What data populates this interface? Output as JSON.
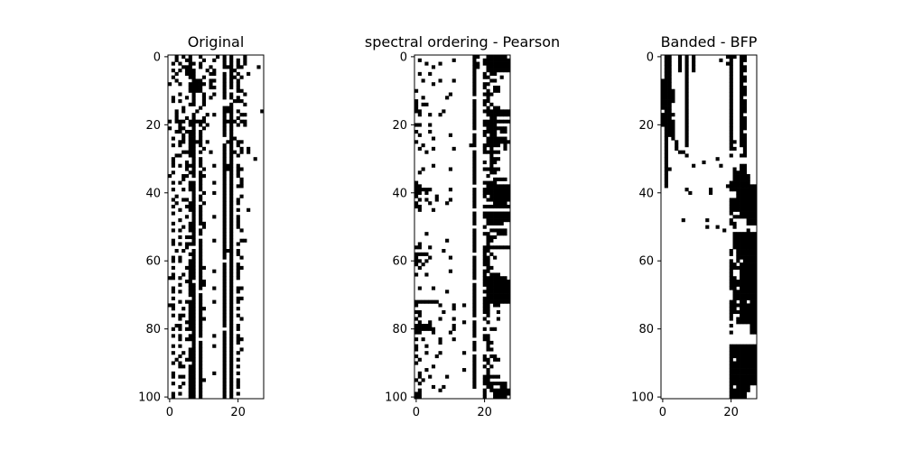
{
  "chart_data": [
    {
      "type": "heatmap",
      "title": "Original",
      "n_rows": 101,
      "n_cols": 28,
      "xticks": [
        0,
        20
      ],
      "yticks": [
        0,
        20,
        40,
        60,
        80,
        100
      ],
      "colormap": {
        "0": "#ffffff",
        "1": "#000000"
      },
      "matrix": [
        "0010101001000010101000100000",
        "0010011000100100101010100000",
        "0101001101000000101010100000",
        "0000111001001000111011000010",
        "0101011100010100001100000000",
        "0010011100001100101010010000",
        "0100001100100000101101000000",
        "0010000111001100101010000000",
        "1001001111101000101010000000",
        "0000001111001100101010000000",
        "0000001111000000100011000000",
        "0001000100100100101000100000",
        "0100010100101000101010000000",
        "0101000100100000000111000000",
        "0000001100100000001000100000",
        "0000100001000000111000000000",
        "0010100010000000111010000001",
        "0010000100010100101001100000",
        "0010010100100000101010000000",
        "1011101111100000111101100000",
        "0001001101010000101010100000",
        "1001100100100000101000000000",
        "0011011101000000101000000000",
        "0000101101000000101000000000",
        "0100101101000000001100000000",
        "0001101111010000011011000000",
        "0101001101000000101010000000",
        "0000001100100000101001010000",
        "0000111101001000101101010000",
        "0011001100000000101010000000",
        "0100000101000000101000000100",
        "0100010101000000101000000000",
        "0101011101000100111010000000",
        "0000010100100000111011000000",
        "0100001101000000101010000000",
        "1000110101100000101010000000",
        "0000100001000000101001000000",
        "0101001101000100101001000000",
        "0000001101000000101011000000",
        "0100101101000000101000000000",
        "0000000100100100101000000000",
        "0010000101000000101001000000",
        "0100110101000000101010000000",
        "0010001100100000101010000000",
        "0100011101000000101000000000",
        "0001001101000000101010010000",
        "0100000101000000101000000000",
        "0000010101000100101010000000",
        "0001000101000000101010000000",
        "0100001101100000101010000000",
        "0000101100100000101010000000",
        "0101001101000000101001000000",
        "0000000101000000101000000000",
        "0001011100000000101000000000",
        "0100000101000100101001100000",
        "0101011101000000101010000000",
        "0000010001000000101000000000",
        "0010100101000000111010000000",
        "0000001101000000101010000000",
        "0101000101000000101001000000",
        "0101001101000000001000000000",
        "0000001101000000101010000000",
        "0100011101100000101011000000",
        "0000001101000100101010000000",
        "0100101101000000101010000000",
        "1101001101000000101010000000",
        "0000011001100000101000000000",
        "0001001101100000101000000000",
        "0100001101000100101011000000",
        "0101001100000000101010000000",
        "0000001101000000101000000000",
        "0100000101000000101011000000",
        "0001011101000100101010000000",
        "1100001101000000101000000000",
        "0100101101100000101010000000",
        "0000001101000000101000000000",
        "0101101101000000101010000000",
        "0001001101100000101001000000",
        "0000011101000000101000000000",
        "0011001101000000101010000000",
        "0101011101000000001010000000",
        "0000000101000000101000000000",
        "0101001101000100101010000000",
        "0001011100000000101011000000",
        "0000000101000000101010000000",
        "0101000101000100101000000000",
        "0000001101000000101001000000",
        "0100101101000000101010000000",
        "0001001101000000101000000000",
        "0010011101000000101010000000",
        "0101000101000000101000000000",
        "0001101101000000101010000000",
        "0000001101000000101000000000",
        "0100001101000100101010000000",
        "0101101101000000101000000000",
        "0000001101100000101010000000",
        "0100101101000000101010000000",
        "0001001101000000101010000000",
        "0000001101000000101000000000",
        "0101001101000000101010000000",
        "0100001101000000101000000000"
      ]
    },
    {
      "type": "heatmap",
      "title": "spectral ordering - Pearson",
      "n_rows": 101,
      "n_cols": 28,
      "xticks": [
        0,
        20
      ],
      "yticks": [
        0,
        20,
        40,
        60,
        80,
        100
      ],
      "colormap": {
        "0": "#ffffff",
        "1": "#000000"
      },
      "matrix": [
        "0000000000000000011001111110",
        "0100000000010000010011111111",
        "0001000100000000011011111111",
        "0000010000000000011001111111",
        "0000000000000000010001111111",
        "0100100000000000010010110000",
        "0000000000000000010011000100",
        "0010000100010000010000110000",
        "0000010000000000010011000000",
        "0000000000000000010010011000",
        "1000000000000000010001011000",
        "0000000000100000010011100000",
        "0010000001000000000001000000",
        "1000000000000000010011000000",
        "1011000000000000010010100000",
        "1000000000000000010001011000",
        "1100000010000000010011111111",
        "0100100100000000010001111111",
        "0000000000000000010000110000",
        "0000000000000000010011111111",
        "1100100000000000010011110000",
        "0000000000000000010001111110",
        "1000100000000000000011110110",
        "0100000000100000010010110000",
        "0000010000000000010001111110",
        "1000000000000000010001111111",
        "0010000000000000110011111010",
        "0100010000010000000010100010",
        "0001000000000000010011111000",
        "0000000000000000010000100000",
        "0000000000000000010000111000",
        "0000000000000000010010110000",
        "0000010000000000010000100000",
        "0010000000100000010011111000",
        "0100000000000000010000110000",
        "0000000000000000010001000000",
        "0000000000000000010000011110",
        "1000000000000000010011110000",
        "1100000000000000000001111111",
        "1111100000100000010011111111",
        "1101000000000000010011111111",
        "1000001000000000010010111111",
        "0101001000100000010001111111",
        "1000100001000000010000011110",
        "1100000000000000010011111111",
        "0100010000000000000000000000",
        "0000000000000000010011111111",
        "0000000000000000010011111111",
        "0000000000000000010001111111",
        "0000000000000000010001111100",
        "0000000000000000000010000000",
        "0000000000000000010000111110",
        "0001000000000000010011001110",
        "0000000000000000010001110000",
        "0000000001000000010001100000",
        "0100000000000000010001000000",
        "1100100000000000010011111111",
        "0000000010000000010011000000",
        "1111000000000000000010100000",
        "1000100000100000010011010000",
        "1101000000000000010011000000",
        "1010000000000000010011000000",
        "0100000000000000010001100000",
        "0000000000100000010011000000",
        "1001000000000000010010111000",
        "0000000000000000010011111110",
        "0000000000000000000011111111",
        "0000000000000000010011111111",
        "0100010000000000010001111111",
        "0000000001000000010011111111",
        "0000000000000000010001111111",
        "0000000000000000010011111111",
        "1111111000000000010011111111",
        "1000000100010010010011011000",
        "0000000000010000010011000000",
        "1100000010000000010011001000",
        "0100000000000000010001000000",
        "1000000100010000000010001000",
        "0100100000000010010001000000",
        "1111100000010000010000000000",
        "1111110000010000010010110000",
        "1100010000100000010000000000",
        "0000000000000000010011000000",
        "1010000100010000000011000000",
        "0000000100000000010001100000",
        "1001000000000000010001000000",
        "1000000000000000010001100000",
        "0001000100000010000000000000",
        "1000001000000000010010110000",
        "0100000000000000010011011000",
        "1000000000000000010001000000",
        "0000010000000000010010100000",
        "0001000000000010010001000000",
        "0100000000000000010001000000",
        "0100100001000000010011111000",
        "1010000000000000010011000000",
        "0100000000000000010011111110",
        "0000010010000000010001100110",
        "0100000100000000000010111111",
        "1100000000000000000010011111",
        "1100000000000000000010011110"
      ]
    },
    {
      "type": "heatmap",
      "title": "Banded - BFP",
      "n_rows": 101,
      "n_cols": 28,
      "xticks": [
        0,
        20
      ],
      "yticks": [
        0,
        20,
        40,
        60,
        80,
        100
      ],
      "colormap": {
        "0": "#ffffff",
        "1": "#000000"
      },
      "matrix": [
        "0110010101000000000111011000",
        "0110010101000000010010011000",
        "0110010101000000000110010000",
        "0110010101000000000010011000",
        "0110010101000000000010011000",
        "0110000100000000000010010000",
        "0110000100000000000010011000",
        "1110000100000000000010011000",
        "1110000100000000000010010000",
        "1110000100000000000010011000",
        "1111000100000000000010011000",
        "1111000100000000000010011000",
        "1111000100000000000010010000",
        "1111000100000000000010011000",
        "1110000100000000000010011000",
        "1110000100000000000010011000",
        "0110000100000000000010011000",
        "1111000100000000000010010000",
        "1110000100000000000010011000",
        "1111000100000000000010011000",
        "1111000100000000000010011000",
        "0111000100000000000010011000",
        "0111000100000000000010010000",
        "0111000100000000000010011000",
        "0101000100000000000010011000",
        "0100100100000000000011011000",
        "0100100100000000000010011000",
        "0100100000000000000011001000",
        "0100011000000000000000001000",
        "0100000100000000000010011000",
        "0100000000000000100000000000",
        "0100000000001000000000000000",
        "0100000001000000010000011000",
        "0110000000000000000001011000",
        "0100000000000000000001111000",
        "0100000000000000000001111100",
        "0100000000000000000001111100",
        "0100000000000000000011111100",
        "0100000000000000000111111111",
        "0000000100000010000011111111",
        "0000000010000010000000111111",
        "0000000000000000000000111111",
        "0000000000000000000011111111",
        "0000000000000000000011111111",
        "0000000000000000000011111111",
        "0000000000000000000011111111",
        "0000000000000000000010011111",
        "0000000000000000000001111111",
        "0000001000000100000010000111",
        "0000000000000000000011000111",
        "0000000000000100100001000000",
        "0000000000000000001000000100",
        "0000000000000000000001111111",
        "0000000000000000000001111111",
        "0000000000000000000001111111",
        "0000000000000000000001111111",
        "0000000000000000000001111111",
        "0000000000000000000010111111",
        "0000000000000000000010111111",
        "0000000000000000000000111111",
        "0000000000000000000010101111",
        "0000000000000000000011011111",
        "0000000000000000000011111111",
        "0000000000000000000010011111",
        "0000000000000000000010011111",
        "0000000000000000000011011111",
        "0000000000000000000011111111",
        "0000000000000000000011111111",
        "0000000000000000000011011111",
        "0000000000000000000001111111",
        "0000000000000000000001111111",
        "0000000000000000000001111111",
        "0000000000000000000011011011",
        "0000000000000000000011111111",
        "0000000000000000000011011111",
        "0000000000000000000011111111",
        "0000000000000000000010011111",
        "0000000000000000000010111111",
        "0000000000000000000000111111",
        "0000000000000000000010000011",
        "0000000000000000000000000011",
        "0000000000000000000010000011",
        "0000000000000000000000000000",
        "0000000000000000000000000000",
        "0000000000000000000000000000",
        "0000000000000000000011111111",
        "0000000000000000000011111111",
        "0000000000000000000011111111",
        "0000000000000000000011111111",
        "0000000000000000000010111111",
        "0000000000000000000011111111",
        "0000000000000000000011111111",
        "0000000000000000000011111111",
        "0000000000000000000011111111",
        "0000000000000000000011111111",
        "0000000000000000000011111111",
        "0000000000000000000011111111",
        "0000000000000000000010111100",
        "0000000000000000000011111100",
        "0000000000000000000011111000",
        "0000000000000000000011111000"
      ]
    }
  ]
}
